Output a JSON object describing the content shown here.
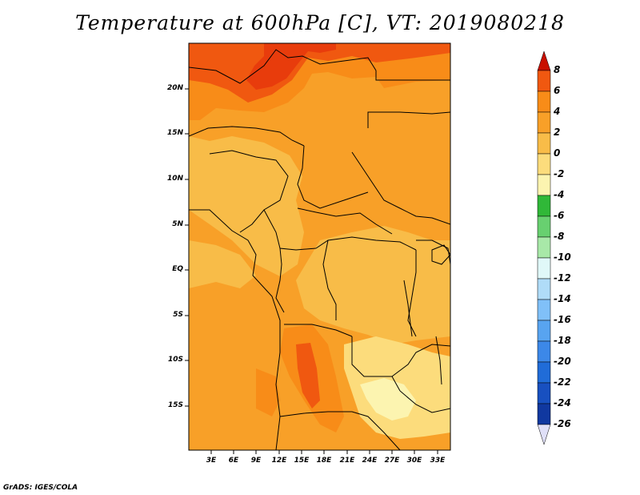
{
  "title": "Temperature at 600hPa [C], VT: 2019080218",
  "credit": "GrADS: IGES/COLA",
  "map": {
    "lat_ticks": [
      "20N",
      "15N",
      "10N",
      "5N",
      "EQ",
      "5S",
      "10S",
      "15S"
    ],
    "lon_ticks": [
      "3E",
      "6E",
      "9E",
      "12E",
      "15E",
      "18E",
      "21E",
      "24E",
      "27E",
      "30E",
      "33E"
    ]
  },
  "colorbar": {
    "labels": [
      "8",
      "6",
      "4",
      "2",
      "0",
      "-2",
      "-4",
      "-6",
      "-8",
      "-10",
      "-12",
      "-14",
      "-16",
      "-18",
      "-20",
      "-22",
      "-24",
      "-26"
    ],
    "colors": [
      "#e02008",
      "#f05810",
      "#f88c18",
      "#f8a028",
      "#f8bc48",
      "#fcdc7c",
      "#fcf4b0",
      "#30b838",
      "#68d070",
      "#a8e8a8",
      "#e0f8f8",
      "#b0dcf8",
      "#80c0f8",
      "#58a4f0",
      "#3c88e8",
      "#206cd8",
      "#1850c0",
      "#1038a0"
    ],
    "over_color": "#c81000",
    "under_color": "#e0e0f8"
  }
}
